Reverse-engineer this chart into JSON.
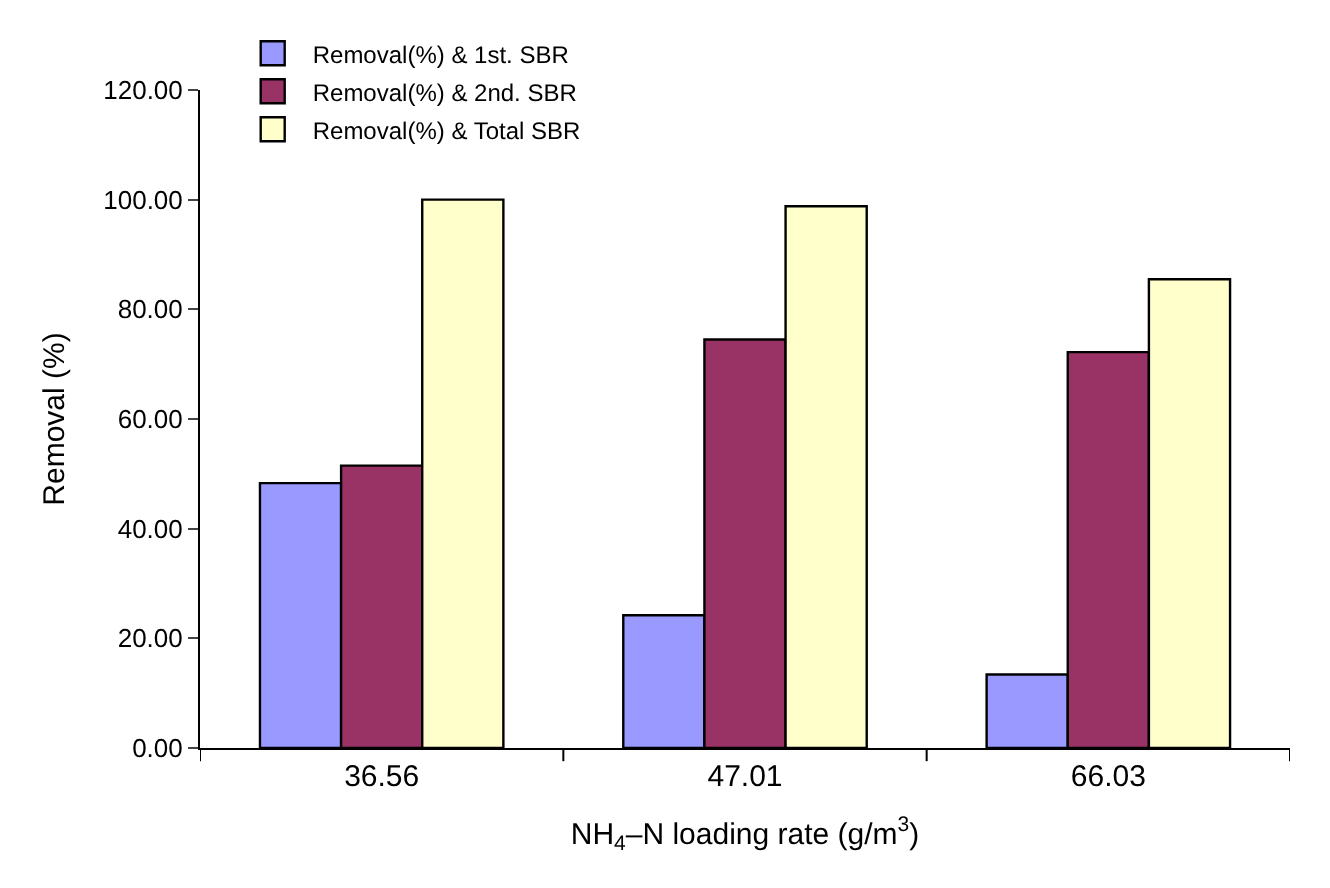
{
  "chart_data": {
    "type": "bar",
    "xlabel": "NH$_{4}$–N loading rate (g/m$^{3}$)",
    "ylabel": "Removal (%)",
    "categories": [
      "36.56",
      "47.01",
      "66.03"
    ],
    "series": [
      {
        "name": "Removal(%) & 1st. SBR",
        "color": "#9999ff",
        "values": [
          48.3,
          24.2,
          13.4
        ]
      },
      {
        "name": "Removal(%) & 2nd. SBR",
        "color": "#993366",
        "values": [
          51.5,
          74.5,
          72.2
        ]
      },
      {
        "name": "Removal(%) & Total SBR",
        "color": "#ffffcc",
        "values": [
          100.0,
          98.8,
          85.5
        ]
      }
    ],
    "ylim": [
      0,
      120
    ],
    "yticks": [
      {
        "value": 0,
        "label": "0.00"
      },
      {
        "value": 20,
        "label": "20.00"
      },
      {
        "value": 40,
        "label": "40.00"
      },
      {
        "value": 60,
        "label": "60.00"
      },
      {
        "value": 80,
        "label": "80.00"
      },
      {
        "value": 100,
        "label": "100.00"
      },
      {
        "value": 120,
        "label": "120.00"
      }
    ],
    "legend": "top left"
  }
}
